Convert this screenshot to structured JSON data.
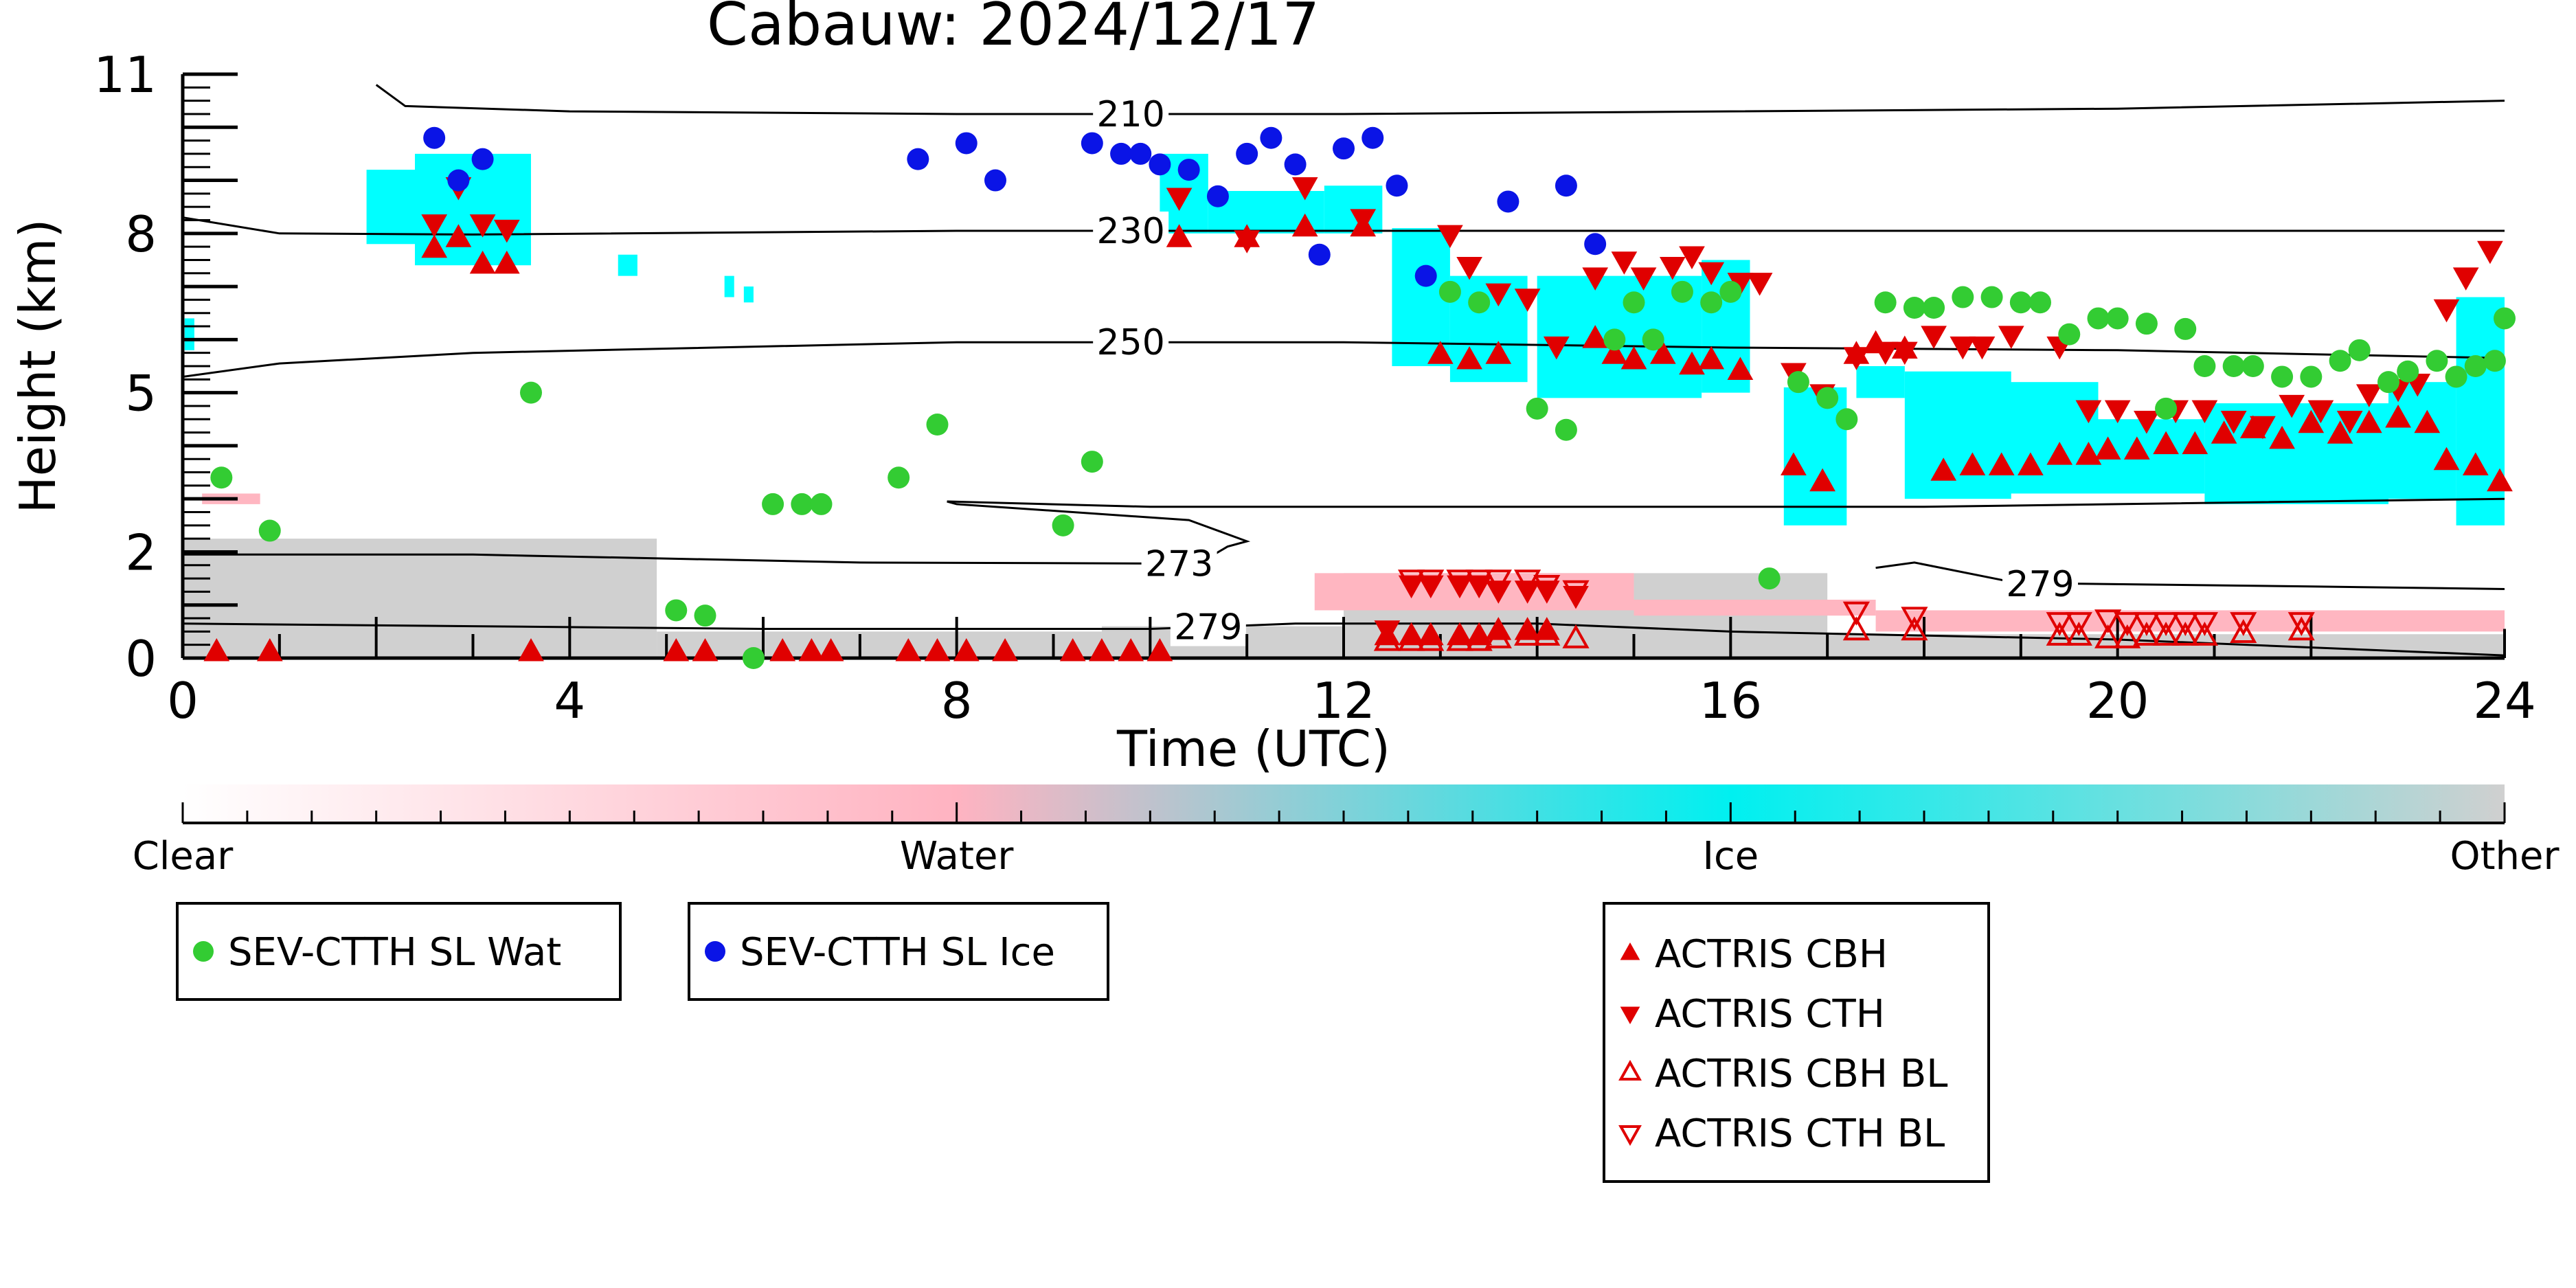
{
  "chart_data": {
    "type": "scatter",
    "title": "Cabauw: 2024/12/17",
    "xlabel": "Time (UTC)",
    "ylabel": "Height (km)",
    "xlim": [
      0,
      24
    ],
    "ylim": [
      0,
      11
    ],
    "xticks": [
      0,
      4,
      8,
      12,
      16,
      20,
      24
    ],
    "yticks": [
      0,
      2,
      5,
      8,
      11
    ],
    "colors": {
      "water_dot": "#33cc33",
      "ice_dot": "#0a14e6",
      "actris": "#e00000",
      "ice_cloud": "#00ffff",
      "water_cloud": "#ffb6c1",
      "other": "#d0d0d0"
    },
    "colorbar": {
      "ticks": [
        "Clear",
        "Water",
        "Ice",
        "Other"
      ],
      "stops": [
        "#ffffff",
        "#ffb3c1",
        "#00f0f0",
        "#d0d0d0"
      ]
    },
    "legend_left": [
      {
        "label": "SEV-CTTH SL Wat",
        "marker": "circle",
        "color": "#33cc33"
      },
      {
        "label": "SEV-CTTH SL Ice",
        "marker": "circle",
        "color": "#0a14e6"
      }
    ],
    "legend_right": [
      {
        "label": "ACTRIS CBH",
        "marker": "triangle-up"
      },
      {
        "label": "ACTRIS CTH",
        "marker": "triangle-down"
      },
      {
        "label": "ACTRIS CBH BL",
        "marker": "triangle-up-open"
      },
      {
        "label": "ACTRIS CTH BL",
        "marker": "triangle-down-open"
      }
    ],
    "contours": [
      {
        "label": "210",
        "label_x": 9.8,
        "points": [
          [
            2.0,
            10.8
          ],
          [
            2.3,
            10.4
          ],
          [
            4,
            10.3
          ],
          [
            8,
            10.25
          ],
          [
            12,
            10.25
          ],
          [
            16,
            10.3
          ],
          [
            20,
            10.35
          ],
          [
            24,
            10.5
          ]
        ]
      },
      {
        "label": "230",
        "label_x": 9.8,
        "points": [
          [
            0,
            8.3
          ],
          [
            1,
            8.0
          ],
          [
            3,
            7.98
          ],
          [
            8,
            8.05
          ],
          [
            12,
            8.05
          ],
          [
            16,
            8.05
          ],
          [
            20,
            8.05
          ],
          [
            24,
            8.05
          ]
        ]
      },
      {
        "label": "250",
        "label_x": 9.8,
        "points": [
          [
            0,
            5.3
          ],
          [
            1,
            5.55
          ],
          [
            3,
            5.75
          ],
          [
            8,
            5.95
          ],
          [
            12,
            5.95
          ],
          [
            16,
            5.85
          ],
          [
            20,
            5.8
          ],
          [
            24,
            5.65
          ]
        ]
      },
      {
        "label": "273",
        "label_x": 10.3,
        "points": [
          [
            0,
            1.95
          ],
          [
            3,
            1.95
          ],
          [
            7,
            1.8
          ],
          [
            10.5,
            1.78
          ],
          [
            10.8,
            2.1
          ],
          [
            11,
            2.2
          ],
          [
            10.4,
            2.6
          ],
          [
            8,
            2.9
          ],
          [
            7.9,
            2.95
          ]
        ]
      },
      {
        "label": "273",
        "label_x": null,
        "points": [
          [
            7.9,
            2.95
          ],
          [
            10,
            2.85
          ],
          [
            14,
            2.85
          ],
          [
            18,
            2.85
          ],
          [
            20,
            2.9
          ],
          [
            24,
            3.0
          ]
        ]
      },
      {
        "label": "279",
        "label_x": 10.6,
        "points": [
          [
            0,
            0.65
          ],
          [
            3,
            0.6
          ],
          [
            6,
            0.55
          ],
          [
            9,
            0.55
          ],
          [
            10,
            0.55
          ],
          [
            10.8,
            0.6
          ],
          [
            11.5,
            0.65
          ],
          [
            12,
            0.65
          ],
          [
            14,
            0.65
          ],
          [
            16,
            0.5
          ],
          [
            20,
            0.35
          ],
          [
            24,
            0.05
          ]
        ]
      },
      {
        "label": "279",
        "label_x": 19.2,
        "points": [
          [
            17.5,
            1.7
          ],
          [
            17.9,
            1.8
          ],
          [
            19,
            1.4
          ],
          [
            19.6,
            1.4
          ],
          [
            22,
            1.35
          ],
          [
            24,
            1.3
          ]
        ]
      }
    ],
    "regions": {
      "other": [
        [
          0,
          0,
          4.9,
          2.25
        ],
        [
          4.9,
          0,
          9.5,
          0.5
        ],
        [
          9.5,
          0,
          12,
          0.6
        ],
        [
          12,
          0,
          17,
          1.6
        ],
        [
          17,
          0,
          24,
          0.45
        ]
      ],
      "water": [
        [
          0.2,
          2.9,
          0.8,
          3.1
        ],
        [
          11.7,
          0.9,
          15,
          1.6
        ],
        [
          15,
          0.8,
          17.5,
          1.1
        ],
        [
          17.5,
          0.5,
          24,
          0.9
        ]
      ],
      "ice": [
        [
          0.02,
          5.8,
          0.12,
          6.4
        ],
        [
          1.9,
          7.8,
          2.5,
          9.2
        ],
        [
          2.4,
          7.4,
          3.6,
          9.5
        ],
        [
          4.5,
          7.2,
          4.7,
          7.6
        ],
        [
          5.6,
          6.8,
          5.7,
          7.2
        ],
        [
          5.8,
          6.7,
          5.9,
          7.0
        ],
        [
          10.1,
          8.0,
          10.6,
          9.5
        ],
        [
          10.6,
          8.0,
          11.8,
          8.8
        ],
        [
          11.8,
          8.0,
          12.4,
          8.9
        ],
        [
          12.5,
          5.5,
          13.1,
          8.1
        ],
        [
          13.1,
          5.2,
          13.9,
          7.2
        ],
        [
          14.0,
          4.9,
          15.7,
          7.2
        ],
        [
          15.7,
          5.0,
          16.2,
          7.5
        ],
        [
          16.55,
          2.5,
          17.2,
          5.1
        ],
        [
          17.3,
          4.9,
          17.8,
          5.5
        ],
        [
          17.8,
          3.0,
          18.9,
          5.4
        ],
        [
          18.8,
          3.1,
          19.8,
          5.2
        ],
        [
          19.8,
          3.1,
          20.9,
          4.5
        ],
        [
          20.9,
          2.9,
          22.8,
          4.8
        ],
        [
          22.8,
          3.0,
          23.5,
          5.2
        ],
        [
          23.5,
          2.5,
          24,
          6.8
        ]
      ]
    },
    "series": [
      {
        "name": "SEV-CTTH SL Wat",
        "color": "#33cc33",
        "points": [
          [
            0.4,
            3.4
          ],
          [
            0.9,
            2.4
          ],
          [
            3.6,
            5.0
          ],
          [
            5.1,
            0.9
          ],
          [
            5.4,
            0.8
          ],
          [
            5.9,
            0.0
          ],
          [
            6.1,
            2.9
          ],
          [
            6.4,
            2.9
          ],
          [
            6.6,
            2.9
          ],
          [
            7.4,
            3.4
          ],
          [
            7.8,
            4.4
          ],
          [
            9.1,
            2.5
          ],
          [
            9.4,
            3.7
          ],
          [
            13.1,
            6.9
          ],
          [
            13.4,
            6.7
          ],
          [
            14.0,
            4.7
          ],
          [
            14.3,
            4.3
          ],
          [
            14.8,
            6.0
          ],
          [
            15.0,
            6.7
          ],
          [
            15.2,
            6.0
          ],
          [
            15.5,
            6.9
          ],
          [
            15.8,
            6.7
          ],
          [
            16.0,
            6.9
          ],
          [
            16.4,
            1.5
          ],
          [
            16.7,
            5.2
          ],
          [
            17.0,
            4.9
          ],
          [
            17.2,
            4.5
          ],
          [
            17.6,
            6.7
          ],
          [
            17.9,
            6.6
          ],
          [
            18.1,
            6.6
          ],
          [
            18.4,
            6.8
          ],
          [
            18.7,
            6.8
          ],
          [
            19.0,
            6.7
          ],
          [
            19.2,
            6.7
          ],
          [
            19.5,
            6.1
          ],
          [
            19.8,
            6.4
          ],
          [
            20.0,
            6.4
          ],
          [
            20.3,
            6.3
          ],
          [
            20.5,
            4.7
          ],
          [
            20.7,
            6.2
          ],
          [
            20.9,
            5.5
          ],
          [
            21.2,
            5.5
          ],
          [
            21.4,
            5.5
          ],
          [
            21.7,
            5.3
          ],
          [
            22.0,
            5.3
          ],
          [
            22.3,
            5.6
          ],
          [
            22.5,
            5.8
          ],
          [
            22.8,
            5.2
          ],
          [
            23.0,
            5.4
          ],
          [
            23.3,
            5.6
          ],
          [
            23.5,
            5.3
          ],
          [
            23.7,
            5.5
          ],
          [
            23.9,
            5.6
          ],
          [
            24.0,
            6.4
          ]
        ]
      },
      {
        "name": "SEV-CTTH SL Ice",
        "color": "#0a14e6",
        "points": [
          [
            2.6,
            9.8
          ],
          [
            2.85,
            9.0
          ],
          [
            3.1,
            9.4
          ],
          [
            7.6,
            9.4
          ],
          [
            8.1,
            9.7
          ],
          [
            8.4,
            9.0
          ],
          [
            9.4,
            9.7
          ],
          [
            9.7,
            9.5
          ],
          [
            9.9,
            9.5
          ],
          [
            10.1,
            9.3
          ],
          [
            10.4,
            9.2
          ],
          [
            10.7,
            8.7
          ],
          [
            11.0,
            9.5
          ],
          [
            11.25,
            9.8
          ],
          [
            11.5,
            9.3
          ],
          [
            11.75,
            7.6
          ],
          [
            12.0,
            9.6
          ],
          [
            12.3,
            9.8
          ],
          [
            12.55,
            8.9
          ],
          [
            12.85,
            7.2
          ],
          [
            13.7,
            8.6
          ],
          [
            14.3,
            8.9
          ],
          [
            14.6,
            7.8
          ]
        ]
      }
    ],
    "actris_cbh": [
      [
        0.35,
        0.0
      ],
      [
        0.9,
        0.0
      ],
      [
        3.6,
        0.0
      ],
      [
        5.1,
        0.0
      ],
      [
        5.4,
        0.0
      ],
      [
        6.2,
        0.0
      ],
      [
        6.5,
        0.0
      ],
      [
        6.7,
        0.0
      ],
      [
        7.5,
        0.0
      ],
      [
        7.8,
        0.0
      ],
      [
        8.1,
        0.0
      ],
      [
        8.5,
        0.0
      ],
      [
        9.2,
        0.0
      ],
      [
        9.5,
        0.0
      ],
      [
        9.8,
        0.0
      ],
      [
        10.1,
        0.0
      ],
      [
        2.6,
        7.6
      ],
      [
        2.85,
        7.8
      ],
      [
        3.1,
        7.3
      ],
      [
        3.35,
        7.3
      ],
      [
        10.3,
        7.8
      ],
      [
        11.0,
        7.8
      ],
      [
        11.6,
        8.0
      ],
      [
        12.2,
        8.0
      ],
      [
        12.45,
        0.3
      ],
      [
        12.7,
        0.3
      ],
      [
        12.9,
        0.3
      ],
      [
        13.2,
        0.3
      ],
      [
        13.4,
        0.3
      ],
      [
        13.6,
        0.4
      ],
      [
        13.9,
        0.4
      ],
      [
        14.1,
        0.4
      ],
      [
        13.0,
        5.6
      ],
      [
        13.3,
        5.5
      ],
      [
        13.6,
        5.6
      ],
      [
        14.6,
        5.9
      ],
      [
        14.8,
        5.6
      ],
      [
        15.0,
        5.5
      ],
      [
        15.3,
        5.6
      ],
      [
        15.6,
        5.4
      ],
      [
        15.8,
        5.5
      ],
      [
        16.1,
        5.3
      ],
      [
        16.65,
        3.5
      ],
      [
        16.95,
        3.2
      ],
      [
        17.3,
        5.6
      ],
      [
        17.5,
        5.8
      ],
      [
        17.8,
        5.7
      ],
      [
        18.2,
        3.4
      ],
      [
        18.5,
        3.5
      ],
      [
        18.8,
        3.5
      ],
      [
        19.1,
        3.5
      ],
      [
        19.4,
        3.7
      ],
      [
        19.7,
        3.7
      ],
      [
        19.9,
        3.8
      ],
      [
        20.2,
        3.8
      ],
      [
        20.5,
        3.9
      ],
      [
        20.8,
        3.9
      ],
      [
        21.1,
        4.1
      ],
      [
        21.4,
        4.2
      ],
      [
        21.7,
        4.0
      ],
      [
        22.0,
        4.3
      ],
      [
        22.3,
        4.1
      ],
      [
        22.6,
        4.3
      ],
      [
        22.9,
        4.4
      ],
      [
        23.2,
        4.3
      ],
      [
        23.4,
        3.6
      ],
      [
        23.7,
        3.5
      ],
      [
        23.95,
        3.2
      ]
    ],
    "actris_cth": [
      [
        2.6,
        8.3
      ],
      [
        2.85,
        9.0
      ],
      [
        3.1,
        8.3
      ],
      [
        3.35,
        8.2
      ],
      [
        10.3,
        8.8
      ],
      [
        11.0,
        8.0
      ],
      [
        11.6,
        9.0
      ],
      [
        12.2,
        8.4
      ],
      [
        12.45,
        0.65
      ],
      [
        12.7,
        1.5
      ],
      [
        12.9,
        1.5
      ],
      [
        13.1,
        8.1
      ],
      [
        13.2,
        1.5
      ],
      [
        13.4,
        1.5
      ],
      [
        13.6,
        1.4
      ],
      [
        13.9,
        1.4
      ],
      [
        14.1,
        1.4
      ],
      [
        14.4,
        1.3
      ],
      [
        13.3,
        7.5
      ],
      [
        13.6,
        7.0
      ],
      [
        13.9,
        6.9
      ],
      [
        14.2,
        6.0
      ],
      [
        14.6,
        7.3
      ],
      [
        14.9,
        7.6
      ],
      [
        15.1,
        7.3
      ],
      [
        15.4,
        7.5
      ],
      [
        15.6,
        7.7
      ],
      [
        15.8,
        7.4
      ],
      [
        16.1,
        7.2
      ],
      [
        16.3,
        7.2
      ],
      [
        16.65,
        5.5
      ],
      [
        16.95,
        5.1
      ],
      [
        17.3,
        5.8
      ],
      [
        17.6,
        5.9
      ],
      [
        17.8,
        5.9
      ],
      [
        18.1,
        6.2
      ],
      [
        18.4,
        6.0
      ],
      [
        18.6,
        6.0
      ],
      [
        18.9,
        6.2
      ],
      [
        19.4,
        6.0
      ],
      [
        19.7,
        4.8
      ],
      [
        20.0,
        4.8
      ],
      [
        20.3,
        4.6
      ],
      [
        20.6,
        4.8
      ],
      [
        20.9,
        4.8
      ],
      [
        21.2,
        4.6
      ],
      [
        21.5,
        4.5
      ],
      [
        21.8,
        4.9
      ],
      [
        22.1,
        4.8
      ],
      [
        22.4,
        4.6
      ],
      [
        22.6,
        5.1
      ],
      [
        22.9,
        5.2
      ],
      [
        23.1,
        5.3
      ],
      [
        23.4,
        6.7
      ],
      [
        23.6,
        7.3
      ],
      [
        23.85,
        7.8
      ]
    ],
    "actris_cbh_bl": [
      [
        12.45,
        0.3
      ],
      [
        12.7,
        0.3
      ],
      [
        12.9,
        0.3
      ],
      [
        13.2,
        0.3
      ],
      [
        13.4,
        0.3
      ],
      [
        13.6,
        0.35
      ],
      [
        13.9,
        0.4
      ],
      [
        14.1,
        0.4
      ],
      [
        14.4,
        0.35
      ],
      [
        17.3,
        0.5
      ],
      [
        17.9,
        0.5
      ],
      [
        19.4,
        0.4
      ],
      [
        19.6,
        0.4
      ],
      [
        19.9,
        0.35
      ],
      [
        20.1,
        0.35
      ],
      [
        20.3,
        0.4
      ],
      [
        20.5,
        0.4
      ],
      [
        20.7,
        0.4
      ],
      [
        20.9,
        0.4
      ],
      [
        21.3,
        0.45
      ],
      [
        21.9,
        0.5
      ]
    ],
    "actris_cth_bl": [
      [
        12.7,
        1.5
      ],
      [
        12.9,
        1.5
      ],
      [
        13.2,
        1.5
      ],
      [
        13.4,
        1.5
      ],
      [
        13.6,
        1.5
      ],
      [
        13.9,
        1.5
      ],
      [
        14.1,
        1.4
      ],
      [
        14.4,
        1.3
      ],
      [
        17.3,
        0.9
      ],
      [
        17.9,
        0.8
      ],
      [
        19.4,
        0.7
      ],
      [
        19.6,
        0.7
      ],
      [
        19.9,
        0.75
      ],
      [
        20.1,
        0.7
      ],
      [
        20.3,
        0.7
      ],
      [
        20.5,
        0.7
      ],
      [
        20.7,
        0.7
      ],
      [
        20.9,
        0.7
      ],
      [
        21.3,
        0.7
      ],
      [
        21.9,
        0.7
      ]
    ]
  }
}
